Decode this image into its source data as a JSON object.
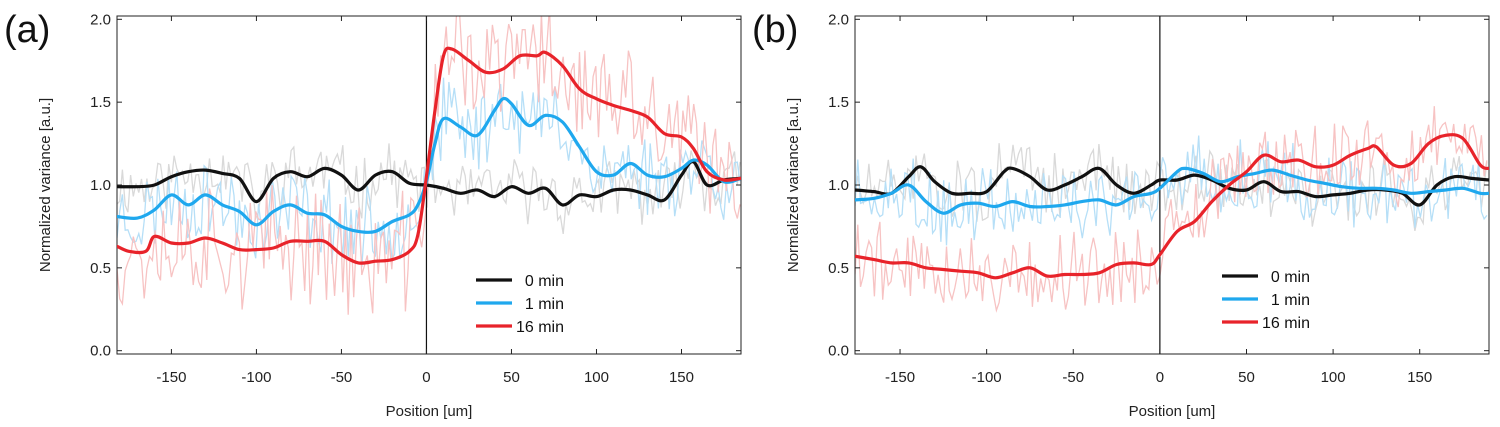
{
  "chart_data": [
    {
      "type": "line",
      "panel_label": "(a)",
      "xlabel": "Position [um]",
      "ylabel": "Normalized variance [a.u.]",
      "xlim": [
        -182,
        185
      ],
      "ylim": [
        -0.02,
        2.02
      ],
      "x_ticks": [
        -150,
        -100,
        -50,
        0,
        50,
        100,
        150
      ],
      "x_tick_labels": [
        "-150",
        "-100",
        "-50",
        "0",
        "50",
        "100",
        "150"
      ],
      "y_ticks": [
        0,
        0.5,
        1,
        1.5,
        2
      ],
      "y_tick_labels": [
        "0.0",
        "0.5",
        "1.0",
        "1.5",
        "2.0"
      ],
      "vline_x": 0,
      "legend_position": "lower-right",
      "series": [
        {
          "name": "0 min",
          "color": "#111111",
          "raw_color": "#d9d9d9",
          "raw_amp": 0.16,
          "seed": 11,
          "x": [
            -182,
            -170,
            -160,
            -150,
            -140,
            -130,
            -120,
            -110,
            -100,
            -90,
            -80,
            -70,
            -60,
            -50,
            -40,
            -30,
            -20,
            -10,
            0,
            10,
            20,
            30,
            40,
            50,
            60,
            70,
            80,
            90,
            100,
            110,
            120,
            130,
            140,
            150,
            157,
            165,
            175,
            185
          ],
          "y": [
            0.99,
            0.99,
            1.0,
            1.05,
            1.08,
            1.09,
            1.07,
            1.04,
            0.9,
            1.04,
            1.08,
            1.05,
            1.1,
            1.06,
            0.97,
            1.06,
            1.08,
            1.01,
            1.0,
            0.98,
            0.95,
            0.97,
            0.93,
            0.99,
            0.95,
            0.98,
            0.88,
            0.94,
            0.93,
            0.97,
            0.97,
            0.94,
            0.91,
            1.06,
            1.14,
            1.0,
            1.03,
            1.04
          ]
        },
        {
          "name": "1 min",
          "color": "#1fa8ee",
          "raw_color": "#b6dff7",
          "raw_amp": 0.22,
          "seed": 23,
          "x": [
            -182,
            -170,
            -160,
            -150,
            -140,
            -130,
            -120,
            -110,
            -100,
            -90,
            -80,
            -70,
            -60,
            -50,
            -40,
            -30,
            -20,
            -10,
            -5,
            0,
            5,
            10,
            20,
            30,
            40,
            45,
            50,
            60,
            70,
            80,
            90,
            100,
            110,
            120,
            130,
            140,
            150,
            157,
            165,
            175,
            185
          ],
          "y": [
            0.81,
            0.8,
            0.85,
            0.94,
            0.88,
            0.94,
            0.88,
            0.84,
            0.76,
            0.84,
            0.88,
            0.83,
            0.82,
            0.75,
            0.72,
            0.72,
            0.78,
            0.82,
            0.88,
            1.02,
            1.25,
            1.4,
            1.35,
            1.3,
            1.45,
            1.52,
            1.49,
            1.36,
            1.42,
            1.38,
            1.23,
            1.08,
            1.06,
            1.13,
            1.06,
            1.05,
            1.1,
            1.15,
            1.12,
            1.02,
            1.04
          ]
        },
        {
          "name": "16 min",
          "color": "#e8232a",
          "raw_color": "#f7c3c3",
          "raw_amp": 0.32,
          "seed": 37,
          "x": [
            -182,
            -175,
            -165,
            -160,
            -150,
            -140,
            -130,
            -120,
            -110,
            -100,
            -90,
            -80,
            -70,
            -60,
            -50,
            -40,
            -30,
            -20,
            -10,
            -5,
            0,
            5,
            10,
            15,
            25,
            35,
            45,
            55,
            65,
            70,
            80,
            90,
            100,
            110,
            120,
            130,
            140,
            150,
            157,
            165,
            175,
            185
          ],
          "y": [
            0.63,
            0.6,
            0.6,
            0.69,
            0.65,
            0.65,
            0.68,
            0.65,
            0.61,
            0.61,
            0.62,
            0.66,
            0.66,
            0.66,
            0.58,
            0.53,
            0.54,
            0.55,
            0.6,
            0.7,
            1.05,
            1.45,
            1.78,
            1.82,
            1.75,
            1.68,
            1.7,
            1.78,
            1.78,
            1.8,
            1.72,
            1.58,
            1.52,
            1.48,
            1.45,
            1.41,
            1.31,
            1.29,
            1.22,
            1.08,
            1.03,
            1.04
          ]
        }
      ]
    },
    {
      "type": "line",
      "panel_label": "(b)",
      "xlabel": "Position [um]",
      "ylabel": "Normalized variance [a.u.]",
      "xlim": [
        -176,
        190
      ],
      "ylim": [
        -0.02,
        2.02
      ],
      "x_ticks": [
        -150,
        -100,
        -50,
        0,
        50,
        100,
        150
      ],
      "x_tick_labels": [
        "-150",
        "-100",
        "-50",
        "0",
        "50",
        "100",
        "150"
      ],
      "y_ticks": [
        0,
        0.5,
        1,
        1.5,
        2
      ],
      "y_tick_labels": [
        "0.0",
        "0.5",
        "1.0",
        "1.5",
        "2.0"
      ],
      "vline_x": 0,
      "legend_position": "lower-right",
      "series": [
        {
          "name": "0 min",
          "color": "#111111",
          "raw_color": "#d9d9d9",
          "raw_amp": 0.17,
          "seed": 51,
          "x": [
            -176,
            -165,
            -155,
            -145,
            -138,
            -130,
            -120,
            -110,
            -100,
            -90,
            -85,
            -75,
            -65,
            -55,
            -45,
            -35,
            -25,
            -15,
            -5,
            0,
            10,
            20,
            30,
            40,
            50,
            60,
            70,
            80,
            90,
            100,
            110,
            120,
            130,
            140,
            150,
            160,
            170,
            180,
            190
          ],
          "y": [
            0.97,
            0.96,
            0.95,
            1.05,
            1.11,
            1.02,
            0.95,
            0.95,
            0.96,
            1.08,
            1.1,
            1.05,
            0.97,
            1.0,
            1.05,
            1.1,
            1.0,
            0.95,
            1.0,
            1.03,
            1.03,
            1.06,
            1.03,
            0.98,
            0.97,
            1.02,
            0.96,
            0.96,
            0.93,
            0.94,
            0.95,
            0.97,
            0.97,
            0.95,
            0.88,
            1.0,
            1.05,
            1.04,
            1.03
          ]
        },
        {
          "name": "1 min",
          "color": "#1fa8ee",
          "raw_color": "#b6dff7",
          "raw_amp": 0.2,
          "seed": 63,
          "x": [
            -176,
            -165,
            -155,
            -145,
            -135,
            -125,
            -115,
            -105,
            -95,
            -85,
            -75,
            -65,
            -55,
            -45,
            -35,
            -25,
            -15,
            -5,
            0,
            10,
            15,
            25,
            35,
            45,
            55,
            65,
            75,
            85,
            95,
            105,
            115,
            125,
            135,
            145,
            155,
            165,
            175,
            185,
            190
          ],
          "y": [
            0.91,
            0.92,
            0.95,
            1.0,
            0.9,
            0.83,
            0.88,
            0.89,
            0.87,
            0.9,
            0.87,
            0.87,
            0.88,
            0.9,
            0.91,
            0.88,
            0.93,
            0.95,
            0.98,
            1.08,
            1.1,
            1.07,
            1.02,
            1.05,
            1.07,
            1.09,
            1.06,
            1.03,
            1.01,
            0.99,
            0.98,
            0.98,
            0.97,
            0.95,
            0.96,
            0.97,
            0.98,
            0.95,
            0.95
          ]
        },
        {
          "name": "16 min",
          "color": "#e8232a",
          "raw_color": "#f7c3c3",
          "raw_amp": 0.22,
          "seed": 79,
          "x": [
            -176,
            -165,
            -155,
            -145,
            -135,
            -125,
            -115,
            -105,
            -95,
            -85,
            -75,
            -65,
            -55,
            -45,
            -35,
            -25,
            -15,
            -5,
            0,
            10,
            20,
            30,
            40,
            50,
            60,
            70,
            80,
            90,
            100,
            110,
            120,
            125,
            135,
            145,
            155,
            165,
            175,
            185,
            190
          ],
          "y": [
            0.57,
            0.55,
            0.53,
            0.53,
            0.5,
            0.49,
            0.48,
            0.47,
            0.44,
            0.47,
            0.5,
            0.45,
            0.46,
            0.46,
            0.47,
            0.52,
            0.53,
            0.52,
            0.58,
            0.72,
            0.78,
            0.9,
            1.0,
            1.08,
            1.18,
            1.14,
            1.15,
            1.11,
            1.12,
            1.18,
            1.22,
            1.23,
            1.12,
            1.13,
            1.25,
            1.3,
            1.28,
            1.12,
            1.1
          ]
        }
      ]
    }
  ]
}
